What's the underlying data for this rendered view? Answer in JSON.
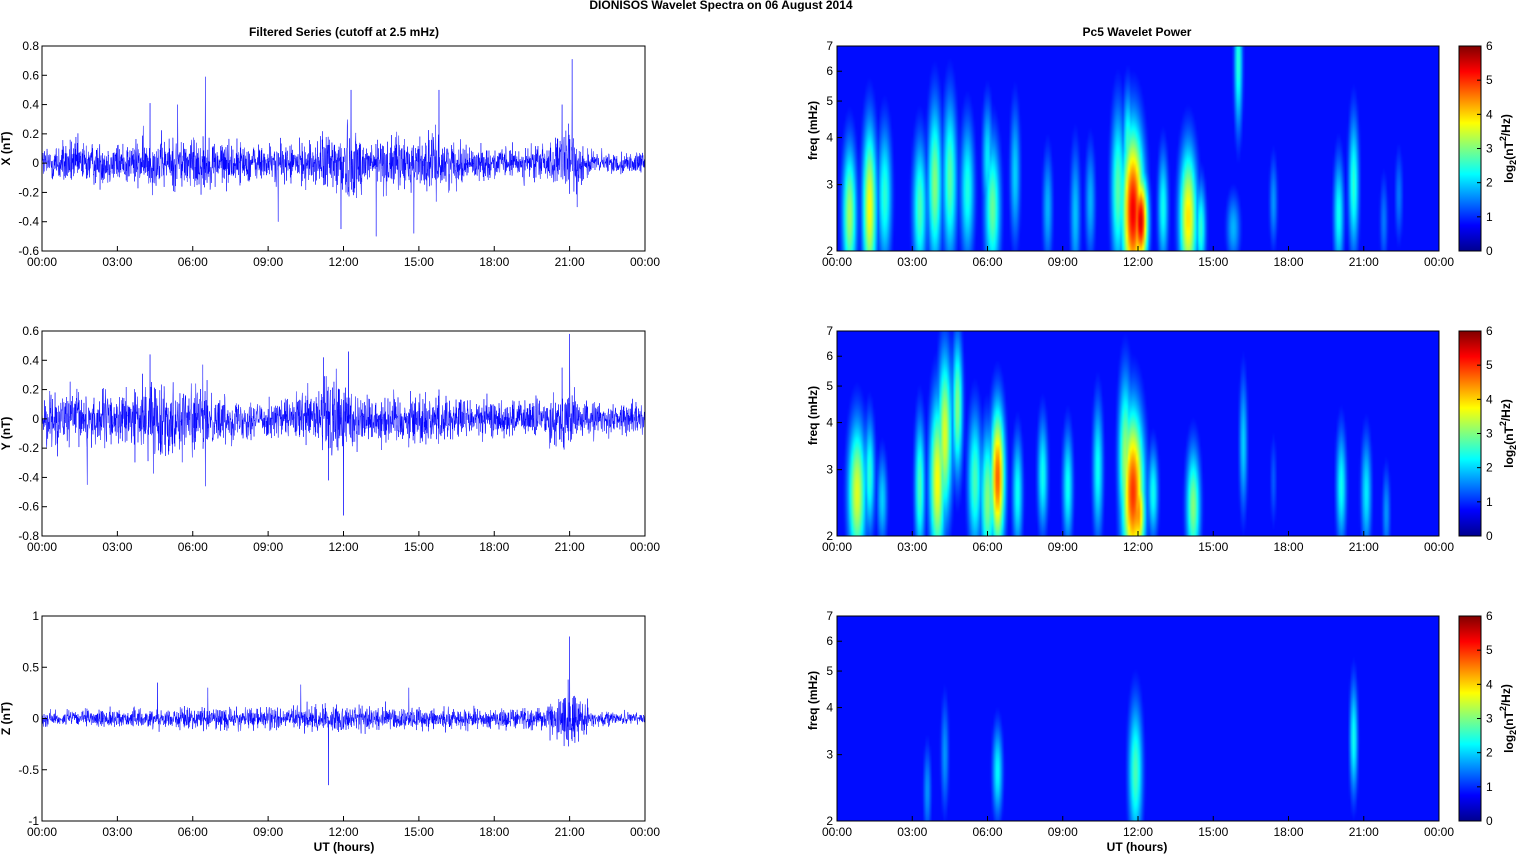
{
  "figure": {
    "title": "DIONISOS Wavelet Spectra on 06 August    2014",
    "left_title": "Filtered Series (cutoff at 2.5 mHz)",
    "right_title": "Pc5 Wavelet Power",
    "xlabel": "UT (hours)",
    "x_ticks": [
      "00:00",
      "03:00",
      "06:00",
      "09:00",
      "12:00",
      "15:00",
      "18:00",
      "21:00",
      "00:00"
    ]
  },
  "colors": {
    "series": "#0000ff",
    "frame": "#000000",
    "heatmap_scale": [
      "#00008f",
      "#0000ff",
      "#00ffff",
      "#ffff00",
      "#ff0000",
      "#800000"
    ]
  },
  "chart_data": [
    {
      "type": "line",
      "name": "X",
      "ylabel": "X (nT)",
      "xlim": [
        0,
        24
      ],
      "ylim": [
        -0.6,
        0.8
      ],
      "yticks": [
        "0.8",
        "0.6",
        "0.4",
        "0.2",
        "0",
        "-0.2",
        "-0.4",
        "-0.6"
      ],
      "ytick_values": [
        0.8,
        0.6,
        0.4,
        0.2,
        0,
        -0.2,
        -0.4,
        -0.6
      ],
      "envelope": {
        "hours": [
          0,
          1,
          2,
          3,
          4,
          5,
          6,
          7,
          8,
          9,
          10,
          11,
          11.5,
          12,
          12.5,
          13,
          14,
          15,
          15.5,
          16,
          17,
          18,
          19,
          20,
          20.5,
          21,
          21.5,
          22,
          23,
          24
        ],
        "amplitude": [
          0.1,
          0.14,
          0.13,
          0.12,
          0.15,
          0.15,
          0.17,
          0.14,
          0.12,
          0.11,
          0.12,
          0.14,
          0.2,
          0.25,
          0.2,
          0.15,
          0.16,
          0.15,
          0.18,
          0.15,
          0.1,
          0.09,
          0.09,
          0.12,
          0.14,
          0.2,
          0.12,
          0.07,
          0.06,
          0.06
        ]
      },
      "spikes": [
        [
          4.3,
          0.41
        ],
        [
          5.4,
          0.4
        ],
        [
          6.5,
          0.59
        ],
        [
          9.4,
          -0.4
        ],
        [
          11.9,
          -0.45
        ],
        [
          12.3,
          0.5
        ],
        [
          13.3,
          -0.5
        ],
        [
          14.8,
          -0.48
        ],
        [
          15.8,
          0.5
        ],
        [
          20.7,
          0.4
        ],
        [
          21.1,
          0.71
        ],
        [
          21.3,
          -0.3
        ]
      ]
    },
    {
      "type": "line",
      "name": "Y",
      "ylabel": "Y (nT)",
      "xlim": [
        0,
        24
      ],
      "ylim": [
        -0.8,
        0.6
      ],
      "yticks": [
        "0.6",
        "0.4",
        "0.2",
        "0",
        "-0.2",
        "-0.4",
        "-0.6",
        "-0.8"
      ],
      "ytick_values": [
        0.6,
        0.4,
        0.2,
        0,
        -0.2,
        -0.4,
        -0.6,
        -0.8
      ],
      "envelope": {
        "hours": [
          0,
          1,
          2,
          3,
          4,
          4.5,
          5,
          6,
          7,
          8,
          9,
          10,
          11,
          11.5,
          12,
          12.5,
          13,
          14,
          15,
          16,
          17,
          18,
          19,
          20,
          20.5,
          21,
          21.5,
          22,
          23,
          24
        ],
        "amplitude": [
          0.15,
          0.17,
          0.17,
          0.15,
          0.2,
          0.24,
          0.2,
          0.2,
          0.14,
          0.12,
          0.11,
          0.12,
          0.2,
          0.27,
          0.25,
          0.18,
          0.14,
          0.15,
          0.16,
          0.15,
          0.12,
          0.11,
          0.11,
          0.13,
          0.15,
          0.18,
          0.11,
          0.1,
          0.09,
          0.09
        ]
      },
      "spikes": [
        [
          1.8,
          -0.45
        ],
        [
          4.3,
          0.44
        ],
        [
          6.4,
          0.37
        ],
        [
          6.5,
          -0.46
        ],
        [
          11.2,
          0.42
        ],
        [
          12.0,
          -0.66
        ],
        [
          12.2,
          0.46
        ],
        [
          11.4,
          -0.42
        ],
        [
          21.0,
          0.58
        ],
        [
          20.7,
          0.35
        ]
      ]
    },
    {
      "type": "line",
      "name": "Z",
      "ylabel": "Z (nT)",
      "xlim": [
        0,
        24
      ],
      "ylim": [
        -1,
        1
      ],
      "yticks": [
        "1",
        "0.5",
        "0",
        "-0.5",
        "-1"
      ],
      "ytick_values": [
        1,
        0.5,
        0,
        -0.5,
        -1
      ],
      "envelope": {
        "hours": [
          0,
          2,
          4,
          6,
          8,
          10,
          11,
          12,
          13,
          14,
          15,
          16,
          17,
          18,
          19,
          20,
          20.5,
          21,
          21.3,
          21.8,
          22,
          23,
          24
        ],
        "amplitude": [
          0.06,
          0.07,
          0.08,
          0.09,
          0.09,
          0.1,
          0.11,
          0.12,
          0.11,
          0.1,
          0.09,
          0.09,
          0.09,
          0.08,
          0.09,
          0.1,
          0.18,
          0.3,
          0.2,
          0.1,
          0.06,
          0.05,
          0.05
        ]
      },
      "spikes": [
        [
          4.6,
          0.35
        ],
        [
          6.6,
          0.3
        ],
        [
          10.3,
          0.33
        ],
        [
          11.4,
          -0.65
        ],
        [
          14.6,
          0.3
        ],
        [
          21.0,
          0.8
        ],
        [
          21.1,
          -0.22
        ]
      ]
    },
    {
      "type": "heatmap",
      "name": "Pc5 power X",
      "ylabel": "freq (mHz)",
      "colorbar_label": "log2(nT2/Hz)",
      "xlim": [
        0,
        24
      ],
      "ylim": [
        2,
        7
      ],
      "yscale": "log",
      "yticks": [
        7,
        6,
        5,
        4,
        3,
        2
      ],
      "clim": [
        0,
        6
      ],
      "cticks": [
        6,
        5,
        4,
        3,
        2,
        1,
        0
      ],
      "blobs": [
        [
          0.5,
          2.5,
          0.2,
          0.3,
          3.0
        ],
        [
          1.3,
          2.6,
          0.2,
          0.35,
          3.6
        ],
        [
          1.9,
          2.8,
          0.2,
          0.3,
          2.2
        ],
        [
          3.3,
          2.6,
          0.2,
          0.3,
          2.4
        ],
        [
          3.9,
          3.0,
          0.2,
          0.35,
          2.8
        ],
        [
          4.5,
          3.1,
          0.2,
          0.35,
          2.5
        ],
        [
          5.2,
          2.9,
          0.2,
          0.3,
          2.1
        ],
        [
          6.2,
          2.6,
          0.22,
          0.3,
          2.6
        ],
        [
          6.0,
          3.5,
          0.15,
          0.25,
          1.8
        ],
        [
          7.1,
          3.2,
          0.15,
          0.3,
          1.6
        ],
        [
          8.4,
          2.6,
          0.15,
          0.25,
          1.4
        ],
        [
          9.5,
          2.5,
          0.15,
          0.3,
          1.5
        ],
        [
          10.1,
          2.7,
          0.15,
          0.25,
          1.4
        ],
        [
          11.2,
          2.9,
          0.2,
          0.35,
          2.5
        ],
        [
          11.8,
          2.55,
          0.3,
          0.35,
          5.4
        ],
        [
          12.1,
          2.4,
          0.2,
          0.2,
          5.6
        ],
        [
          11.6,
          3.7,
          0.15,
          0.25,
          2.4
        ],
        [
          13.0,
          2.6,
          0.15,
          0.25,
          2.0
        ],
        [
          14.0,
          2.45,
          0.25,
          0.3,
          3.8
        ],
        [
          14.5,
          2.3,
          0.15,
          0.2,
          2.2
        ],
        [
          15.8,
          2.3,
          0.2,
          0.15,
          1.4
        ],
        [
          16.0,
          6.3,
          0.12,
          0.3,
          2.2
        ],
        [
          17.4,
          2.7,
          0.12,
          0.2,
          1.2
        ],
        [
          20.0,
          2.5,
          0.15,
          0.25,
          2.0
        ],
        [
          20.6,
          3.0,
          0.15,
          0.3,
          2.2
        ],
        [
          21.8,
          2.4,
          0.12,
          0.2,
          1.0
        ],
        [
          22.4,
          2.8,
          0.12,
          0.2,
          1.0
        ]
      ]
    },
    {
      "type": "heatmap",
      "name": "Pc5 power Y",
      "ylabel": "freq (mHz)",
      "colorbar_label": "log2(nT2/Hz)",
      "xlim": [
        0,
        24
      ],
      "ylim": [
        2,
        7
      ],
      "yscale": "log",
      "yticks": [
        7,
        6,
        5,
        4,
        3,
        2
      ],
      "clim": [
        0,
        6
      ],
      "cticks": [
        6,
        5,
        4,
        3,
        2,
        1,
        0
      ],
      "blobs": [
        [
          0.8,
          2.6,
          0.25,
          0.3,
          3.4
        ],
        [
          1.3,
          2.9,
          0.15,
          0.25,
          2.2
        ],
        [
          1.8,
          2.5,
          0.15,
          0.2,
          1.6
        ],
        [
          3.3,
          2.7,
          0.15,
          0.3,
          2.4
        ],
        [
          4.0,
          2.8,
          0.22,
          0.35,
          3.6
        ],
        [
          4.3,
          3.7,
          0.2,
          0.35,
          3.4
        ],
        [
          4.8,
          4.4,
          0.15,
          0.3,
          2.8
        ],
        [
          5.5,
          2.8,
          0.2,
          0.3,
          2.4
        ],
        [
          6.0,
          2.5,
          0.2,
          0.3,
          2.8
        ],
        [
          6.4,
          2.85,
          0.2,
          0.3,
          4.7
        ],
        [
          7.2,
          2.6,
          0.15,
          0.25,
          2.0
        ],
        [
          8.2,
          2.9,
          0.15,
          0.25,
          2.0
        ],
        [
          9.2,
          2.7,
          0.15,
          0.25,
          2.0
        ],
        [
          10.4,
          3.0,
          0.15,
          0.3,
          2.0
        ],
        [
          11.5,
          3.2,
          0.2,
          0.35,
          3.0
        ],
        [
          11.8,
          2.6,
          0.3,
          0.35,
          5.0
        ],
        [
          12.0,
          2.3,
          0.2,
          0.2,
          4.4
        ],
        [
          12.6,
          2.6,
          0.15,
          0.2,
          2.0
        ],
        [
          14.2,
          2.4,
          0.2,
          0.25,
          2.8
        ],
        [
          16.2,
          3.5,
          0.12,
          0.3,
          1.6
        ],
        [
          17.4,
          2.8,
          0.1,
          0.2,
          0.8
        ],
        [
          20.1,
          2.7,
          0.15,
          0.25,
          2.0
        ],
        [
          21.1,
          2.6,
          0.15,
          0.25,
          1.8
        ],
        [
          21.9,
          2.3,
          0.12,
          0.2,
          1.2
        ]
      ]
    },
    {
      "type": "heatmap",
      "name": "Pc5 power Z",
      "ylabel": "freq (mHz)",
      "colorbar_label": "log2(nT2/Hz)",
      "xlim": [
        0,
        24
      ],
      "ylim": [
        2,
        7
      ],
      "yscale": "log",
      "yticks": [
        7,
        6,
        5,
        4,
        3,
        2
      ],
      "clim": [
        0,
        6
      ],
      "cticks": [
        6,
        5,
        4,
        3,
        2,
        1,
        0
      ],
      "blobs": [
        [
          3.6,
          2.4,
          0.12,
          0.2,
          1.2
        ],
        [
          4.3,
          3.0,
          0.12,
          0.25,
          1.2
        ],
        [
          6.4,
          2.7,
          0.15,
          0.2,
          1.9
        ],
        [
          11.9,
          2.7,
          0.2,
          0.3,
          2.4
        ],
        [
          12.0,
          2.35,
          0.15,
          0.15,
          1.6
        ],
        [
          20.6,
          3.3,
          0.12,
          0.25,
          2.0
        ]
      ]
    }
  ]
}
